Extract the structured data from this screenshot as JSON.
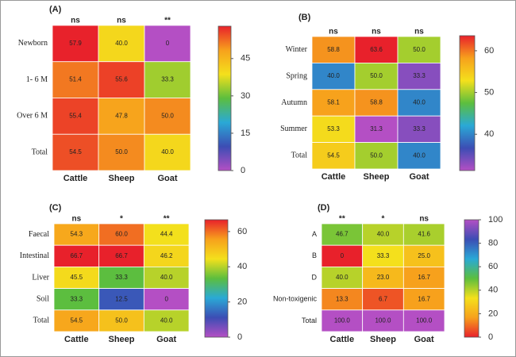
{
  "chart_data": [
    {
      "type": "heatmap",
      "title": "(A)",
      "categories": [
        "Cattle",
        "Sheep",
        "Goat"
      ],
      "rows": [
        "Newborn",
        "1- 6 M",
        "Over 6 M",
        "Total"
      ],
      "values": [
        [
          57.9,
          40.0,
          0
        ],
        [
          51.4,
          55.6,
          33.3
        ],
        [
          55.4,
          47.8,
          50.0
        ],
        [
          54.5,
          50.0,
          40.0
        ]
      ],
      "value_labels": [
        [
          "57.9",
          "40.0",
          "0"
        ],
        [
          "51.4",
          "55.6",
          "33.3"
        ],
        [
          "55.4",
          "47.8",
          "50.0"
        ],
        [
          "54.5",
          "50.0",
          "40.0"
        ]
      ],
      "significance": [
        "ns",
        "ns",
        "**"
      ],
      "zlim": [
        0,
        58
      ],
      "zticks": [
        0,
        15,
        30,
        45
      ],
      "colors": [
        "#b44fc4",
        "#3c4db4",
        "#2aa9d6",
        "#5cbe3e",
        "#f4e01c",
        "#f7a11c",
        "#e8212b"
      ]
    },
    {
      "type": "heatmap",
      "title": "(B)",
      "categories": [
        "Cattle",
        "Sheep",
        "Goat"
      ],
      "rows": [
        "Winter",
        "Spring",
        "Autumn",
        "Summer",
        "Total"
      ],
      "values": [
        [
          58.8,
          63.6,
          50.0
        ],
        [
          40.0,
          50.0,
          33.3
        ],
        [
          58.1,
          58.8,
          40.0
        ],
        [
          53.3,
          31.3,
          33.3
        ],
        [
          54.5,
          50.0,
          40.0
        ]
      ],
      "value_labels": [
        [
          "58.8",
          "63.6",
          "50.0"
        ],
        [
          "40.0",
          "50.0",
          "33.3"
        ],
        [
          "58.1",
          "58.8",
          "40.0"
        ],
        [
          "53.3",
          "31.3",
          "33.3"
        ],
        [
          "54.5",
          "50.0",
          "40.0"
        ]
      ],
      "significance": [
        "ns",
        "ns",
        "ns"
      ],
      "zlim": [
        31.3,
        63.6
      ],
      "zticks": [
        40,
        50,
        60
      ],
      "colors": [
        "#b44fc4",
        "#3c4db4",
        "#2aa9d6",
        "#5cbe3e",
        "#f4e01c",
        "#f7a11c",
        "#e8212b"
      ]
    },
    {
      "type": "heatmap",
      "title": "(C)",
      "categories": [
        "Cattle",
        "Sheep",
        "Goat"
      ],
      "rows": [
        "Faecal",
        "Intestinal",
        "Liver",
        "Soil",
        "Total"
      ],
      "values": [
        [
          54.3,
          60.0,
          44.4
        ],
        [
          66.7,
          66.7,
          46.2
        ],
        [
          45.5,
          33.3,
          40.0
        ],
        [
          33.3,
          12.5,
          0
        ],
        [
          54.5,
          50.0,
          40.0
        ]
      ],
      "value_labels": [
        [
          "54.3",
          "60.0",
          "44.4"
        ],
        [
          "66.7",
          "66.7",
          "46.2"
        ],
        [
          "45.5",
          "33.3",
          "40.0"
        ],
        [
          "33.3",
          "12.5",
          "0"
        ],
        [
          "54.5",
          "50.0",
          "40.0"
        ]
      ],
      "significance": [
        "ns",
        "*",
        "**"
      ],
      "zlim": [
        0,
        66.7
      ],
      "zticks": [
        0,
        20,
        40,
        60
      ],
      "colors": [
        "#b44fc4",
        "#3c4db4",
        "#2aa9d6",
        "#5cbe3e",
        "#f4e01c",
        "#f7a11c",
        "#e8212b"
      ]
    },
    {
      "type": "heatmap",
      "title": "(D)",
      "categories": [
        "Cattle",
        "Sheep",
        "Goat"
      ],
      "rows": [
        "A",
        "B",
        "D",
        "Non-toxigenic",
        "Total"
      ],
      "values": [
        [
          46.7,
          40.0,
          41.6
        ],
        [
          0,
          33.3,
          25.0
        ],
        [
          40.0,
          23.0,
          16.7
        ],
        [
          13.3,
          6.7,
          16.7
        ],
        [
          100.0,
          100.0,
          100.0
        ]
      ],
      "value_labels": [
        [
          "46.7",
          "40.0",
          "41.6"
        ],
        [
          "0",
          "33.3",
          "25.0"
        ],
        [
          "40.0",
          "23.0",
          "16.7"
        ],
        [
          "13.3",
          "6.7",
          "16.7"
        ],
        [
          "100.0",
          "100.0",
          "100.0"
        ]
      ],
      "significance": [
        "**",
        "*",
        "ns"
      ],
      "zlim": [
        0,
        100
      ],
      "zticks": [
        0,
        20,
        40,
        60,
        80,
        100
      ],
      "colors": [
        "#e8212b",
        "#f7a11c",
        "#f4e01c",
        "#5cbe3e",
        "#2aa9d6",
        "#3c4db4",
        "#b44fc4"
      ]
    }
  ]
}
